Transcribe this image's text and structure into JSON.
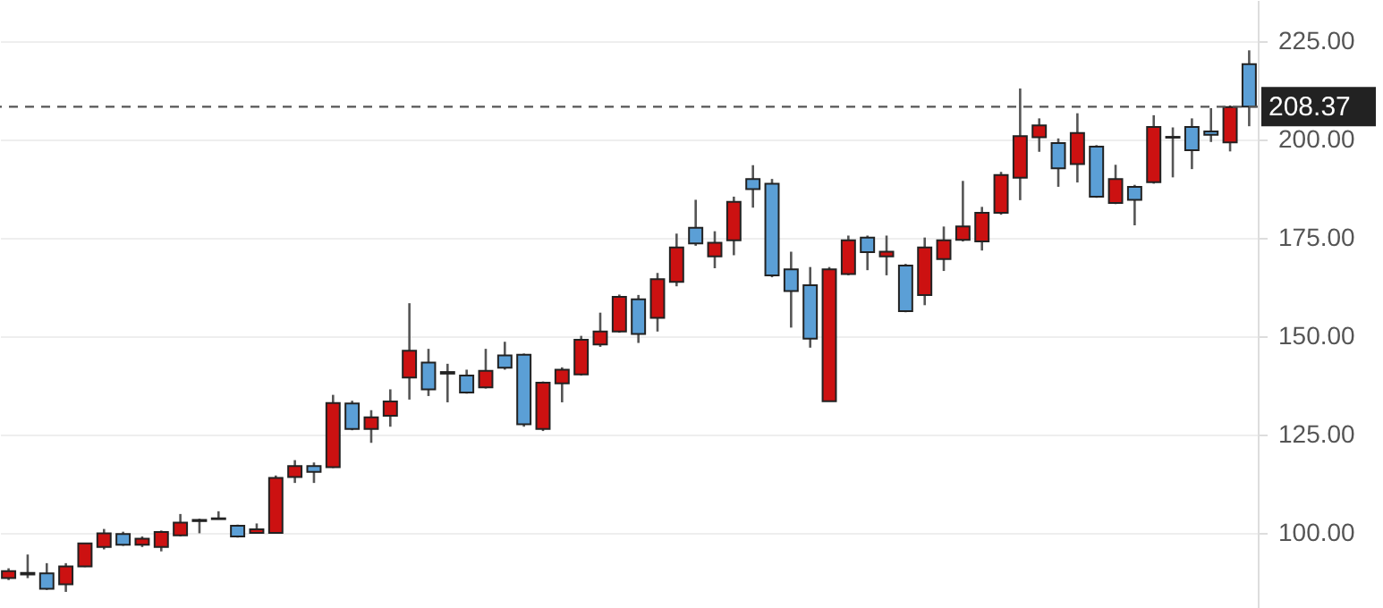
{
  "chart_data": {
    "type": "candlestick",
    "categories": [
      null,
      null,
      null,
      null,
      null,
      null,
      null,
      null,
      null,
      null,
      null,
      null,
      null,
      null,
      null,
      null,
      null,
      null,
      null,
      null,
      null,
      null,
      null,
      null,
      null,
      null,
      null,
      null,
      null,
      null,
      null,
      null,
      null,
      null,
      null,
      null,
      null,
      null,
      null,
      null,
      null,
      null,
      null,
      null,
      null,
      null,
      null,
      null,
      null,
      null,
      null,
      null,
      null,
      null,
      null,
      null,
      null,
      null,
      null,
      null,
      null,
      null,
      null,
      null,
      null,
      null
    ],
    "ohlc": [
      [
        88.5,
        91,
        88,
        90.3
      ],
      [
        89.8,
        94.5,
        88.5,
        89.4
      ],
      [
        89.7,
        92.3,
        85.5,
        85.8
      ],
      [
        86.9,
        92.3,
        85.0,
        91.5
      ],
      [
        91.5,
        97.5,
        91.3,
        97.3
      ],
      [
        96.4,
        101,
        95.8,
        99.9
      ],
      [
        99.7,
        100.3,
        96.7,
        97.0
      ],
      [
        97.0,
        99.1,
        96.4,
        98.5
      ],
      [
        96.4,
        100.6,
        95.3,
        100.2
      ],
      [
        99.4,
        104.8,
        99.1,
        102.6
      ],
      [
        103.0,
        103.6,
        99.9,
        103.3
      ],
      [
        103.5,
        105.5,
        103.4,
        103.7
      ],
      [
        101.8,
        102.1,
        98.8,
        99.1
      ],
      [
        100.0,
        102.4,
        99.9,
        100.9
      ],
      [
        100.0,
        114.6,
        99.9,
        114.0
      ],
      [
        114.2,
        118.5,
        112.7,
        117.0
      ],
      [
        117.0,
        117.9,
        112.7,
        115.5
      ],
      [
        116.7,
        135.1,
        116.5,
        133.0
      ],
      [
        132.9,
        133.6,
        126.1,
        126.4
      ],
      [
        126.4,
        131.2,
        122.9,
        129.4
      ],
      [
        129.8,
        136.5,
        127.0,
        133.4
      ],
      [
        139.5,
        158.4,
        133.9,
        146.3
      ],
      [
        143.3,
        146.8,
        134.8,
        136.5
      ],
      [
        140.9,
        143.0,
        133.2,
        140.5
      ],
      [
        140.0,
        141.5,
        135.4,
        135.7
      ],
      [
        137.0,
        146.8,
        136.7,
        141.2
      ],
      [
        145.1,
        148.6,
        141.5,
        142.0
      ],
      [
        145.3,
        145.6,
        127.0,
        127.6
      ],
      [
        126.4,
        138.5,
        125.9,
        138.2
      ],
      [
        138.0,
        142.1,
        133.2,
        141.5
      ],
      [
        140.3,
        150.1,
        140.0,
        149.1
      ],
      [
        147.9,
        156.0,
        147.3,
        151.2
      ],
      [
        151.2,
        160.6,
        150.9,
        160.0
      ],
      [
        159.4,
        160.5,
        148.3,
        150.6
      ],
      [
        154.7,
        166.1,
        151.2,
        164.5
      ],
      [
        163.8,
        176.1,
        162.7,
        172.6
      ],
      [
        177.6,
        184.7,
        173.0,
        173.6
      ],
      [
        170.3,
        176.7,
        167.3,
        173.8
      ],
      [
        174.4,
        185.5,
        170.6,
        184.2
      ],
      [
        190.0,
        193.5,
        182.7,
        187.4
      ],
      [
        188.8,
        190.0,
        165.0,
        165.5
      ],
      [
        167.0,
        171.5,
        152.2,
        161.5
      ],
      [
        163.0,
        167.6,
        147.1,
        149.4
      ],
      [
        133.5,
        167.6,
        133.5,
        167.0
      ],
      [
        165.8,
        175.6,
        165.5,
        174.4
      ],
      [
        175.1,
        175.6,
        166.8,
        171.4
      ],
      [
        170.3,
        175.6,
        165.5,
        171.5
      ],
      [
        168.0,
        168.4,
        156.1,
        156.4
      ],
      [
        160.5,
        175.1,
        157.9,
        172.6
      ],
      [
        169.6,
        177.9,
        166.6,
        174.4
      ],
      [
        174.5,
        189.5,
        174.1,
        177.9
      ],
      [
        174.1,
        182.9,
        171.8,
        181.4
      ],
      [
        181.4,
        191.8,
        180.9,
        191.0
      ],
      [
        190.3,
        213.0,
        184.6,
        200.9
      ],
      [
        200.6,
        205.4,
        196.9,
        203.6
      ],
      [
        199.1,
        200.3,
        188.0,
        192.7
      ],
      [
        193.8,
        206.7,
        189.1,
        201.7
      ],
      [
        198.2,
        198.6,
        185.2,
        185.5
      ],
      [
        183.9,
        193.6,
        183.6,
        190.0
      ],
      [
        188.0,
        188.5,
        178.2,
        184.7
      ],
      [
        189.2,
        206.2,
        188.8,
        203.2
      ],
      [
        200.5,
        203.1,
        190.4,
        200.7
      ],
      [
        203.2,
        205.4,
        192.5,
        197.3
      ],
      [
        202.1,
        208.0,
        199.4,
        201.2
      ],
      [
        199.3,
        208.7,
        197.0,
        208.3
      ],
      [
        219.2,
        222.7,
        203.4,
        208.37
      ]
    ],
    "colors": [
      "#cc1111",
      "#5b9fd6",
      "#5b9fd6",
      "#cc1111",
      "#cc1111",
      "#cc1111",
      "#5b9fd6",
      "#cc1111",
      "#cc1111",
      "#cc1111",
      "#cc1111",
      "#cc1111",
      "#5b9fd6",
      "#cc1111",
      "#cc1111",
      "#cc1111",
      "#5b9fd6",
      "#cc1111",
      "#5b9fd6",
      "#cc1111",
      "#cc1111",
      "#cc1111",
      "#5b9fd6",
      "#5b9fd6",
      "#5b9fd6",
      "#cc1111",
      "#5b9fd6",
      "#5b9fd6",
      "#cc1111",
      "#cc1111",
      "#cc1111",
      "#cc1111",
      "#cc1111",
      "#5b9fd6",
      "#cc1111",
      "#cc1111",
      "#5b9fd6",
      "#cc1111",
      "#cc1111",
      "#5b9fd6",
      "#5b9fd6",
      "#5b9fd6",
      "#5b9fd6",
      "#cc1111",
      "#cc1111",
      "#5b9fd6",
      "#cc1111",
      "#5b9fd6",
      "#cc1111",
      "#cc1111",
      "#cc1111",
      "#cc1111",
      "#cc1111",
      "#cc1111",
      "#cc1111",
      "#5b9fd6",
      "#cc1111",
      "#5b9fd6",
      "#cc1111",
      "#5b9fd6",
      "#cc1111",
      "#cc1111",
      "#5b9fd6",
      "#5b9fd6",
      "#cc1111",
      "#5b9fd6"
    ],
    "ylim": [
      80.9,
      235.5
    ],
    "yticks": [
      {
        "value": 100,
        "label": "100.00"
      },
      {
        "value": 125,
        "label": "125.00"
      },
      {
        "value": 150,
        "label": "150.00"
      },
      {
        "value": 175,
        "label": "175.00"
      },
      {
        "value": 200,
        "label": "200.00"
      },
      {
        "value": 225,
        "label": "225.00"
      }
    ],
    "grid": "y",
    "tick_labels": "y",
    "ref_lines": [
      {
        "axis": "y",
        "value": 208.37,
        "label": "208.37",
        "color": "#555555",
        "line_style": "dashed"
      }
    ]
  }
}
